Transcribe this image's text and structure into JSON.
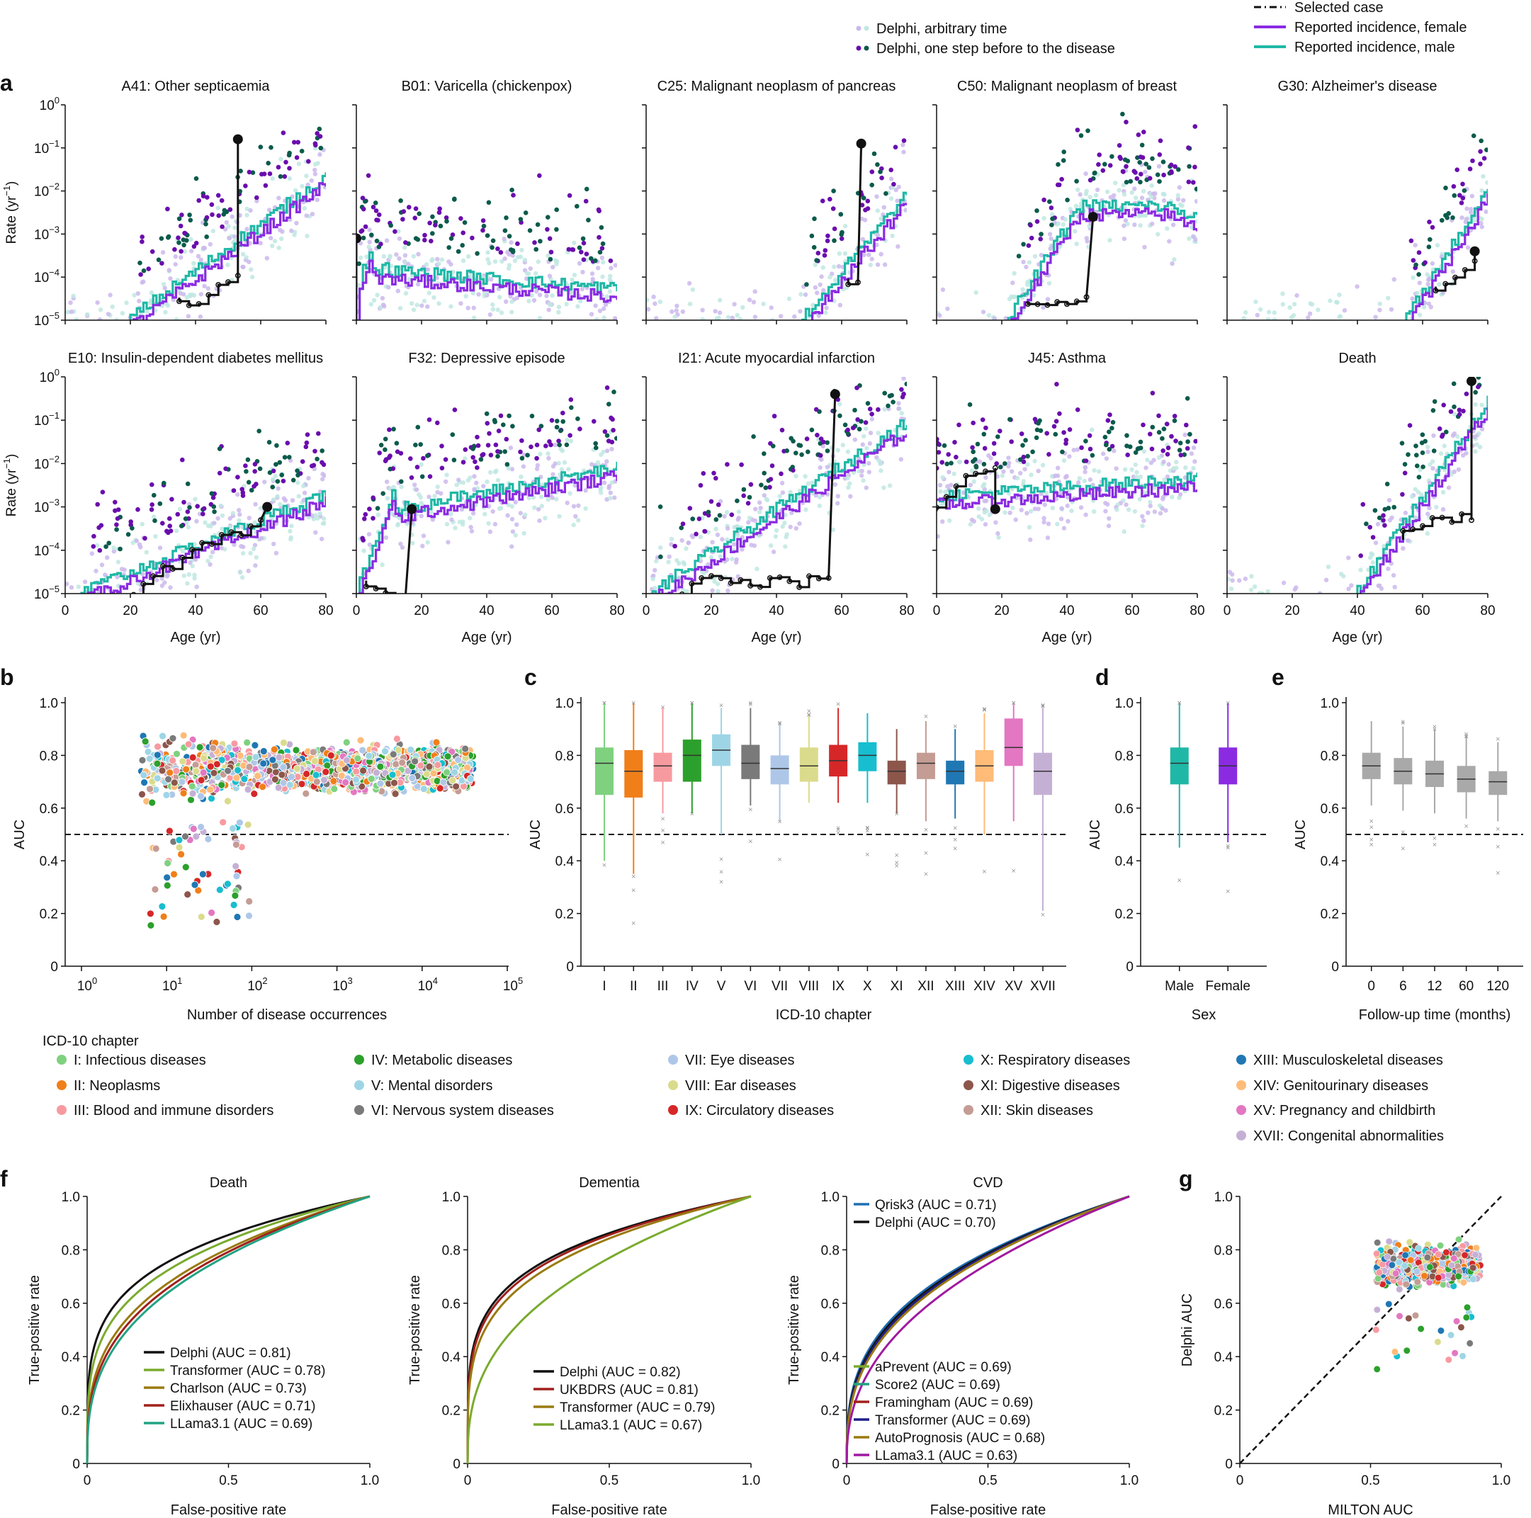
{
  "colors": {
    "female": "#8a2be2",
    "male": "#1fb8a6",
    "delphi_arbitrary": "#cbb8ec",
    "delphi_arbitrary_male": "#bfe8e2",
    "delphi_step_female": "#6a0dad",
    "delphi_step_male": "#0b5b4b",
    "selected_case": "#111111",
    "chapters": [
      "#7fd17f",
      "#f07f1a",
      "#f79aa0",
      "#2ca02c",
      "#9ed5e6",
      "#7a7a7a",
      "#aec7e8",
      "#dbdb8d",
      "#d62728",
      "#17becf",
      "#8c564b",
      "#c49c94",
      "#1f77b4",
      "#ffbb78",
      "#e377c2",
      "#c5b0d5"
    ]
  },
  "legend_top": {
    "items": [
      {
        "label": "Delphi, arbitrary time",
        "marker": "dots-light"
      },
      {
        "label": "Delphi, one step before to the disease",
        "marker": "dots-dark"
      },
      {
        "label": "Selected case",
        "marker": "dashdot"
      },
      {
        "label": "Reported incidence, female",
        "marker": "line-female"
      },
      {
        "label": "Reported incidence, male",
        "marker": "line-male"
      }
    ]
  },
  "panel_letters": [
    "a",
    "b",
    "c",
    "d",
    "e",
    "f",
    "g"
  ],
  "panel_a": {
    "ylabel": "Rate (yr",
    "ylabel_sup": "−1",
    "ylabel_tail": ")",
    "xlabel": "Age (yr)",
    "yticks": [
      {
        "base": "10",
        "exp": "0"
      },
      {
        "base": "10",
        "exp": "−1"
      },
      {
        "base": "10",
        "exp": "−2"
      },
      {
        "base": "10",
        "exp": "−3"
      },
      {
        "base": "10",
        "exp": "−4"
      },
      {
        "base": "10",
        "exp": "−5"
      }
    ],
    "xticks": [
      "0",
      "20",
      "40",
      "60",
      "80"
    ],
    "subplots": [
      {
        "title": "A41: Other septicaemia",
        "log_peak": -2.7,
        "slope": 0.055,
        "onset": 20,
        "shape": "rise",
        "case_age": [
          35,
          53
        ],
        "dot": [
          53,
          -0.8
        ]
      },
      {
        "title": "B01: Varicella (chickenpox)",
        "log_peak": -3.6,
        "slope": 0.0,
        "onset": 0,
        "shape": "child",
        "case_age": [
          0,
          0
        ],
        "dot": [
          0,
          -3.1
        ]
      },
      {
        "title": "C25: Malignant neoplasm of pancreas",
        "log_peak": -3.5,
        "slope": 0.09,
        "onset": 48,
        "shape": "rise",
        "case_age": [
          62,
          66
        ],
        "dot": [
          66,
          -0.9
        ]
      },
      {
        "title": "C50: Malignant neoplasm of breast",
        "log_peak": -2.4,
        "slope": 0.06,
        "onset": 22,
        "shape": "breast",
        "case_age": [
          28,
          48
        ],
        "dot": [
          48,
          -2.6
        ]
      },
      {
        "title": "G30: Alzheimer's disease",
        "log_peak": -2.2,
        "slope": 0.12,
        "onset": 55,
        "shape": "rise",
        "case_age": [
          64,
          76
        ],
        "dot": [
          76,
          -3.4
        ]
      },
      {
        "title": "E10: Insulin-dependent diabetes mellitus",
        "log_peak": -2.8,
        "slope": 0.03,
        "onset": 5,
        "shape": "rise",
        "case_age": [
          15,
          60
        ],
        "dot": [
          62,
          -3.0
        ]
      },
      {
        "title": "F32: Depressive episode",
        "log_peak": -2.2,
        "slope": 0.02,
        "onset": 3,
        "shape": "flat",
        "case_age": [
          3,
          17
        ],
        "dot": [
          17,
          -3.05
        ]
      },
      {
        "title": "I21: Acute myocardial infarction",
        "log_peak": -2.1,
        "slope": 0.05,
        "onset": 2,
        "shape": "rise",
        "case_age": [
          2,
          58
        ],
        "dot": [
          58,
          -0.4
        ]
      },
      {
        "title": "J45: Asthma",
        "log_peak": -2.3,
        "slope": 0.005,
        "onset": 0,
        "shape": "flat",
        "case_age": [
          0,
          18
        ],
        "dot": [
          18,
          -3.05
        ]
      },
      {
        "title": "Death",
        "log_peak": -2.3,
        "slope": 0.11,
        "onset": 40,
        "shape": "rise",
        "case_age": [
          54,
          75
        ],
        "dot": [
          75,
          -0.1
        ]
      }
    ]
  },
  "panel_b": {
    "ylabel": "AUC",
    "xlabel": "Number of disease occurrences",
    "yticks": [
      "0",
      "0.2",
      "0.4",
      "0.6",
      "0.8",
      "1.0"
    ],
    "xticks": [
      {
        "base": "10",
        "exp": "0"
      },
      {
        "base": "10",
        "exp": "1"
      },
      {
        "base": "10",
        "exp": "2"
      },
      {
        "base": "10",
        "exp": "3"
      },
      {
        "base": "10",
        "exp": "4"
      },
      {
        "base": "10",
        "exp": "5"
      }
    ],
    "reference_line": 0.5
  },
  "panel_c": {
    "ylabel": "AUC",
    "xlabel": "ICD-10 chapter",
    "yticks": [
      "0",
      "0.2",
      "0.4",
      "0.6",
      "0.8",
      "1.0"
    ],
    "reference_line": 0.5
  },
  "panel_d": {
    "ylabel": "AUC",
    "xlabel": "Sex",
    "yticks": [
      "0",
      "0.2",
      "0.4",
      "0.6",
      "0.8",
      "1.0"
    ],
    "reference_line": 0.5
  },
  "panel_e": {
    "ylabel": "AUC",
    "xlabel": "Follow-up time (months)",
    "yticks": [
      "0",
      "0.2",
      "0.4",
      "0.6",
      "0.8",
      "1.0"
    ],
    "reference_line": 0.5
  },
  "chapter_legend": {
    "title": "ICD-10 chapter",
    "items": [
      "I: Infectious diseases",
      "II: Neoplasms",
      "III: Blood and immune disorders",
      "IV: Metabolic diseases",
      "V: Mental disorders",
      "VI: Nervous system diseases",
      "VII: Eye diseases",
      "VIII: Ear diseases",
      "IX: Circulatory diseases",
      "X: Respiratory diseases",
      "XI: Digestive diseases",
      "XII: Skin diseases",
      "XIII: Musculoskeletal diseases",
      "XIV: Genitourinary diseases",
      "XV: Pregnancy and childbirth",
      "XVII: Congenital abnormalities"
    ]
  },
  "panel_f": {
    "ylabel": "True-positive rate",
    "xlabel": "False-positive rate",
    "yticks": [
      "0",
      "0.2",
      "0.4",
      "0.6",
      "0.8",
      "1.0"
    ],
    "xticks": [
      "0",
      "0.5",
      "1.0"
    ]
  },
  "panel_g": {
    "ylabel": "Delphi AUC",
    "xlabel": "MILTON AUC",
    "yticks": [
      "0",
      "0.2",
      "0.4",
      "0.6",
      "0.8",
      "1.0"
    ],
    "xticks": [
      "0",
      "0.5",
      "1.0"
    ]
  },
  "chart_data": [
    {
      "type": "line",
      "title": "a",
      "scale": "log",
      "ylim": [
        1e-05,
        1
      ],
      "xlim": [
        0,
        80
      ],
      "series": [
        {
          "name": "Reported incidence, female"
        },
        {
          "name": "Reported incidence, male"
        },
        {
          "name": "Delphi, arbitrary time"
        },
        {
          "name": "Delphi, one step before to the disease"
        },
        {
          "name": "Selected case"
        }
      ]
    },
    {
      "type": "scatter",
      "title": "b",
      "xscale": "log",
      "xlim": [
        1,
        100000
      ],
      "ylim": [
        0,
        1
      ],
      "reference_line": 0.5
    },
    {
      "type": "bar",
      "title": "c",
      "categories": [
        "I",
        "II",
        "III",
        "IV",
        "V",
        "VI",
        "VII",
        "VIII",
        "IX",
        "X",
        "XI",
        "XII",
        "XIII",
        "XIV",
        "XV",
        "XVII"
      ],
      "box": [
        {
          "q1": 0.65,
          "med": 0.77,
          "q3": 0.83,
          "lo": 0.4,
          "hi": 1.0
        },
        {
          "q1": 0.64,
          "med": 0.74,
          "q3": 0.82,
          "lo": 0.35,
          "hi": 1.0
        },
        {
          "q1": 0.7,
          "med": 0.76,
          "q3": 0.81,
          "lo": 0.58,
          "hi": 0.98
        },
        {
          "q1": 0.7,
          "med": 0.8,
          "q3": 0.86,
          "lo": 0.58,
          "hi": 1.0
        },
        {
          "q1": 0.76,
          "med": 0.82,
          "q3": 0.88,
          "lo": 0.5,
          "hi": 0.98
        },
        {
          "q1": 0.71,
          "med": 0.77,
          "q3": 0.84,
          "lo": 0.61,
          "hi": 0.98
        },
        {
          "q1": 0.69,
          "med": 0.75,
          "q3": 0.8,
          "lo": 0.55,
          "hi": 0.92
        },
        {
          "q1": 0.7,
          "med": 0.76,
          "q3": 0.83,
          "lo": 0.62,
          "hi": 0.95
        },
        {
          "q1": 0.72,
          "med": 0.78,
          "q3": 0.84,
          "lo": 0.62,
          "hi": 0.98
        },
        {
          "q1": 0.74,
          "med": 0.8,
          "q3": 0.85,
          "lo": 0.62,
          "hi": 0.96
        },
        {
          "q1": 0.69,
          "med": 0.74,
          "q3": 0.78,
          "lo": 0.58,
          "hi": 0.9
        },
        {
          "q1": 0.71,
          "med": 0.77,
          "q3": 0.81,
          "lo": 0.55,
          "hi": 0.93
        },
        {
          "q1": 0.69,
          "med": 0.74,
          "q3": 0.78,
          "lo": 0.56,
          "hi": 0.9
        },
        {
          "q1": 0.7,
          "med": 0.76,
          "q3": 0.82,
          "lo": 0.5,
          "hi": 0.96
        },
        {
          "q1": 0.76,
          "med": 0.83,
          "q3": 0.94,
          "lo": 0.55,
          "hi": 1.0
        },
        {
          "q1": 0.65,
          "med": 0.74,
          "q3": 0.81,
          "lo": 0.21,
          "hi": 0.98
        }
      ],
      "ylim": [
        0,
        1
      ]
    },
    {
      "type": "bar",
      "title": "d",
      "categories": [
        "Male",
        "Female"
      ],
      "box": [
        {
          "q1": 0.69,
          "med": 0.77,
          "q3": 0.83,
          "lo": 0.45,
          "hi": 1.0
        },
        {
          "q1": 0.69,
          "med": 0.76,
          "q3": 0.83,
          "lo": 0.47,
          "hi": 1.0
        }
      ],
      "ylim": [
        0,
        1
      ]
    },
    {
      "type": "bar",
      "title": "e",
      "categories": [
        "0",
        "6",
        "12",
        "60",
        "120"
      ],
      "box": [
        {
          "q1": 0.71,
          "med": 0.76,
          "q3": 0.81,
          "lo": 0.61,
          "hi": 0.93
        },
        {
          "q1": 0.69,
          "med": 0.74,
          "q3": 0.79,
          "lo": 0.59,
          "hi": 0.91
        },
        {
          "q1": 0.68,
          "med": 0.73,
          "q3": 0.78,
          "lo": 0.58,
          "hi": 0.9
        },
        {
          "q1": 0.66,
          "med": 0.71,
          "q3": 0.76,
          "lo": 0.56,
          "hi": 0.87
        },
        {
          "q1": 0.65,
          "med": 0.7,
          "q3": 0.74,
          "lo": 0.55,
          "hi": 0.85
        }
      ],
      "ylim": [
        0,
        1
      ]
    },
    {
      "type": "line",
      "title": "Death",
      "series": [
        {
          "name": "Delphi (AUC = 0.81)",
          "auc": 0.81,
          "color": "#111111"
        },
        {
          "name": "Transformer (AUC = 0.78)",
          "auc": 0.78,
          "color": "#7aab2e"
        },
        {
          "name": "Charlson (AUC = 0.73)",
          "auc": 0.73,
          "color": "#9a7a10"
        },
        {
          "name": "Elixhauser (AUC = 0.71)",
          "auc": 0.71,
          "color": "#a0201c"
        },
        {
          "name": "LLama3.1 (AUC = 0.69)",
          "auc": 0.69,
          "color": "#22a383"
        }
      ]
    },
    {
      "type": "line",
      "title": "Dementia",
      "series": [
        {
          "name": "Delphi (AUC = 0.82)",
          "auc": 0.82,
          "color": "#111111"
        },
        {
          "name": "UKBDRS (AUC = 0.81)",
          "auc": 0.81,
          "color": "#a0201c"
        },
        {
          "name": "Transformer (AUC = 0.79)",
          "auc": 0.79,
          "color": "#9a7a10"
        },
        {
          "name": "LLama3.1 (AUC = 0.67)",
          "auc": 0.67,
          "color": "#7aab2e"
        }
      ]
    },
    {
      "type": "line",
      "title": "CVD",
      "series": [
        {
          "name": "Qrisk3 (AUC = 0.71)",
          "auc": 0.71,
          "color": "#1f6fb4"
        },
        {
          "name": "Delphi (AUC = 0.70)",
          "auc": 0.7,
          "color": "#111111"
        },
        {
          "name": "aPrevent (AUC = 0.69)",
          "auc": 0.69,
          "color": "#7aab2e"
        },
        {
          "name": "Score2 (AUC = 0.69)",
          "auc": 0.69,
          "color": "#22a383"
        },
        {
          "name": "Framingham (AUC = 0.69)",
          "auc": 0.69,
          "color": "#a0201c"
        },
        {
          "name": "Transformer (AUC = 0.69)",
          "auc": 0.69,
          "color": "#1c1c8c"
        },
        {
          "name": "AutoPrognosis (AUC = 0.68)",
          "auc": 0.68,
          "color": "#9a7a10"
        },
        {
          "name": "LLama3.1 (AUC = 0.63)",
          "auc": 0.63,
          "color": "#a01aa0"
        }
      ]
    },
    {
      "type": "scatter",
      "title": "g",
      "xlim": [
        0,
        1
      ],
      "ylim": [
        0,
        1
      ]
    }
  ]
}
